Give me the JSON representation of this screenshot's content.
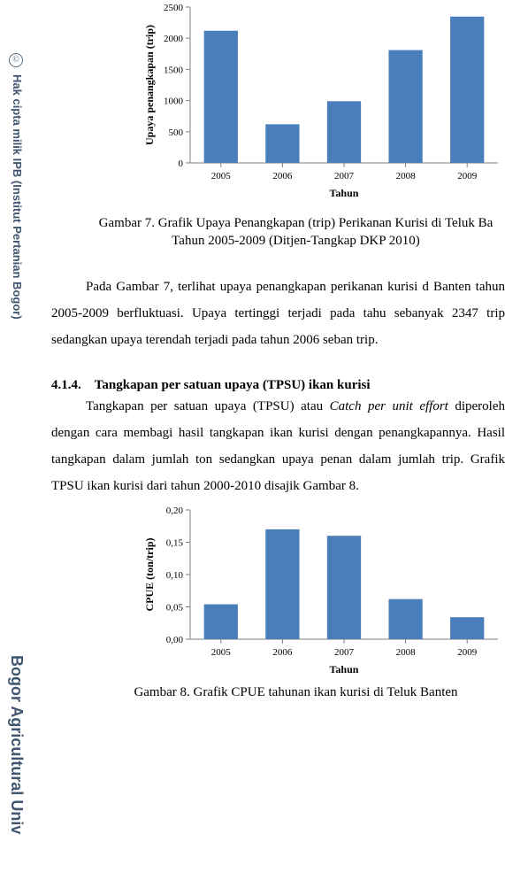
{
  "watermark": {
    "copyright_glyph": "©",
    "line1": "Hak cipta milik IPB (Institut Pertanian Bogor)",
    "line2": "Bogor Agricultural Univ"
  },
  "chart1": {
    "type": "bar",
    "categories": [
      "2005",
      "2006",
      "2007",
      "2008",
      "2009"
    ],
    "values": [
      2120,
      620,
      990,
      1810,
      2347
    ],
    "bar_color": "#4a7ebb",
    "xlabel": "Tahun",
    "ylabel": "Upaya penangkapan (trip)",
    "ylim": [
      0,
      2500
    ],
    "ytick_step": 500,
    "ytick_labels": [
      "0",
      "500",
      "1000",
      "1500",
      "2000",
      "2500"
    ],
    "axis_color": "#7f7f7f",
    "tick_color": "#7f7f7f",
    "label_fontsize": 11,
    "tick_fontsize": 11,
    "background_color": "#ffffff",
    "font_family": "Times New Roman",
    "bar_width": 0.55
  },
  "caption1": "Gambar 7. Grafik Upaya Penangkapan (trip) Perikanan Kurisi di Teluk Ba\nTahun 2005-2009 (Ditjen-Tangkap DKP 2010)",
  "para1": "Pada Gambar 7, terlihat upaya penangkapan perikanan kurisi d Banten tahun 2005-2009 berfluktuasi. Upaya tertinggi terjadi pada tahu sebanyak 2347 trip sedangkan upaya terendah terjadi pada tahun 2006 seban trip.",
  "section_head": "4.1.4. Tangkapan per satuan upaya (TPSU) ikan kurisi",
  "para2_pre": "Tangkapan per satuan upaya (TPSU) atau ",
  "para2_italic": "Catch per unit effort",
  "para2_post": " diperoleh dengan cara membagi hasil tangkapan ikan kurisi dengan penangkapannya. Hasil tangkapan dalam jumlah ton sedangkan upaya penan dalam jumlah trip. Grafik TPSU ikan kurisi dari tahun 2000-2010 disajik Gambar 8.",
  "chart2": {
    "type": "bar",
    "categories": [
      "2005",
      "2006",
      "2007",
      "2008",
      "2009"
    ],
    "values": [
      0.054,
      0.17,
      0.16,
      0.062,
      0.034
    ],
    "bar_color": "#4a7ebb",
    "xlabel": "Tahun",
    "ylabel": "CPUE (ton/trip)",
    "ylim": [
      0.0,
      0.2
    ],
    "ytick_step": 0.05,
    "ytick_labels": [
      "0,00",
      "0,05",
      "0,10",
      "0,15",
      "0,20"
    ],
    "axis_color": "#7f7f7f",
    "tick_color": "#7f7f7f",
    "label_fontsize": 11,
    "tick_fontsize": 11,
    "background_color": "#ffffff",
    "font_family": "Times New Roman",
    "bar_width": 0.55
  },
  "caption2": "Gambar 8. Grafik CPUE tahunan ikan kurisi di Teluk Banten"
}
